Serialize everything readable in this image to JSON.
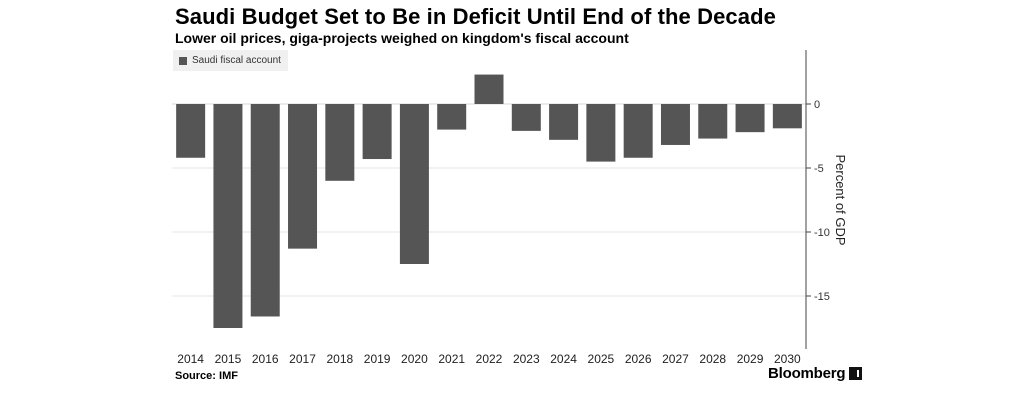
{
  "chart_data": {
    "type": "bar",
    "title": "Saudi Budget Set to Be in Deficit Until End of the Decade",
    "subtitle": "Lower oil prices, giga-projects weighed on kingdom's fiscal account",
    "series": [
      {
        "name": "Saudi fiscal account",
        "values": [
          -4.2,
          -17.5,
          -16.6,
          -11.3,
          -6.0,
          -4.3,
          -12.5,
          -2.0,
          2.3,
          -2.1,
          -2.8,
          -4.5,
          -4.2,
          -3.2,
          -2.7,
          -2.2,
          -1.9
        ]
      }
    ],
    "categories": [
      "2014",
      "2015",
      "2016",
      "2017",
      "2018",
      "2019",
      "2020",
      "2021",
      "2022",
      "2023",
      "2024",
      "2025",
      "2026",
      "2027",
      "2028",
      "2029",
      "2030"
    ],
    "ylabel": "Percent of GDP",
    "ylim": [
      -19.5,
      4.5
    ],
    "yticks": [
      0,
      -5,
      -10,
      -15
    ],
    "color": "#555555",
    "grid": true,
    "legend": "top-left",
    "y_axis_side": "right",
    "source": "Source: IMF",
    "brand": "Bloomberg"
  }
}
